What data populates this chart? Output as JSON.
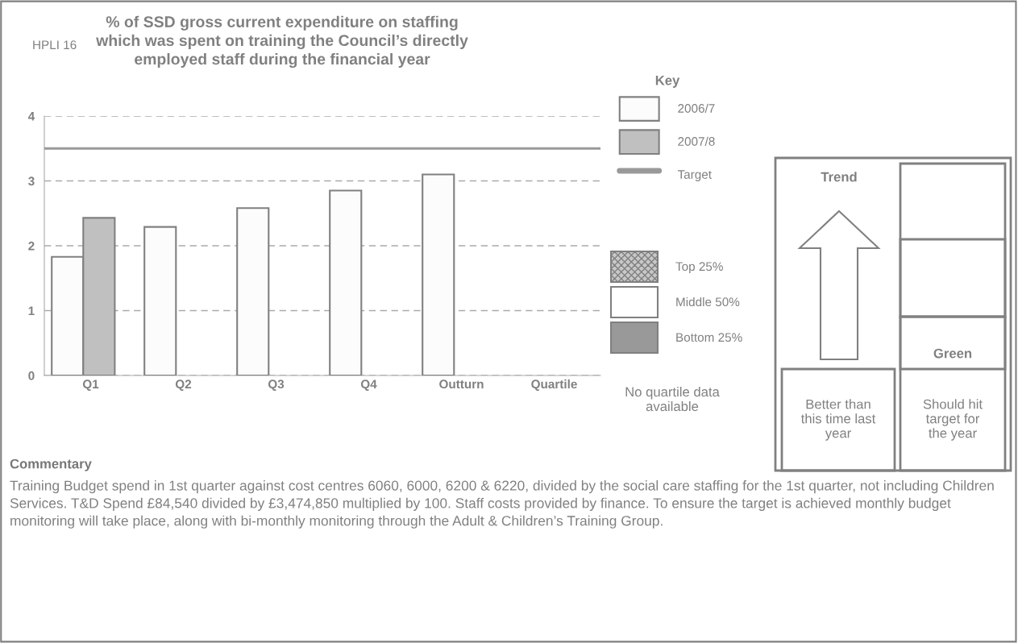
{
  "chart_data": {
    "type": "bar",
    "title": "% of SSD gross current expenditure on staffing\nwhich was spent on training the Council’s directly\nemployed staff during the financial year",
    "categories": [
      "Q1",
      "Q2",
      "Q3",
      "Q4",
      "Outturn",
      "Quartile"
    ],
    "series": [
      {
        "name": "2006/7",
        "color": "#fcfcfc",
        "values": [
          1.83,
          2.29,
          2.58,
          2.85,
          3.1,
          null
        ]
      },
      {
        "name": "2007/8",
        "color": "#c0c0c0",
        "values": [
          2.43,
          null,
          null,
          null,
          null,
          null
        ]
      }
    ],
    "ylim": [
      0,
      4
    ],
    "yticks": [
      0,
      1,
      2,
      3,
      4
    ],
    "grid": "y",
    "ref_lines": [
      {
        "axis": "y",
        "value": 3.5,
        "label": "Target",
        "color": "#999999"
      }
    ],
    "legend": "right",
    "legend_title": "Key",
    "annotations": [
      "HPLI 16",
      "Top 25%",
      "Middle 50%",
      "Bottom 25%",
      "No quartile data\navailable",
      "Trend",
      "Green",
      "Better than\nthis time last\nyear",
      "Should hit\ntarget for\nthe year",
      "Commentary",
      "Training Budget spend in 1st quarter against cost centres 6060, 6000, 6200 & 6220, divided by the social care staffing for the 1st quarter, not including Children Services. T&D Spend £84,540 divided by £3,474,850 multiplied by 100. Staff costs provided by finance. To ensure the target is achieved monthly budget monitoring will take place, along with bi-monthly monitoring through the Adult & Children’s Training Group."
    ]
  }
}
